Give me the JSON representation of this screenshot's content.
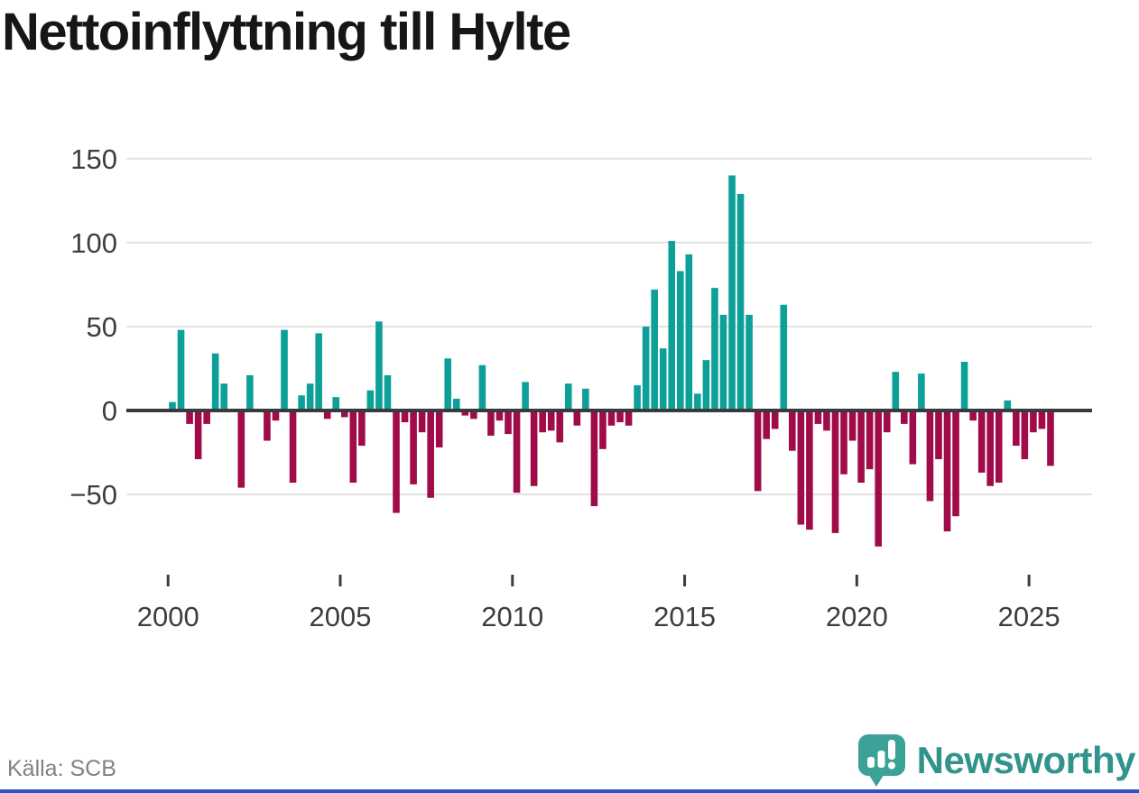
{
  "title": "Nettoinflyttning till Hylte",
  "source": "Källa: SCB",
  "brand": {
    "name": "Newsworthy"
  },
  "colors": {
    "positive_bar": "#0da099",
    "negative_bar": "#a00b49",
    "axis_line": "#3a3a3a",
    "gridline": "#e2e2e2",
    "tick_label": "#3d3d3d",
    "title_text": "#161616",
    "source_text": "#828282",
    "brand_teal": "#3CA197",
    "brand_text": "#31948C",
    "accent_bottom": "#2b52c7"
  },
  "chart_data": {
    "type": "bar",
    "frequency": "quarterly",
    "x_start": "2000 Q1",
    "x_end": "2025 Q3",
    "values": [
      5,
      48,
      -8,
      -29,
      -8,
      34,
      16,
      0,
      -46,
      21,
      0,
      -18,
      -6,
      48,
      -43,
      9,
      16,
      46,
      -5,
      8,
      -4,
      -43,
      -21,
      12,
      53,
      21,
      -61,
      -7,
      -44,
      -13,
      -52,
      -22,
      31,
      7,
      -3,
      -5,
      27,
      -15,
      -6,
      -14,
      -49,
      17,
      -45,
      -13,
      -12,
      -19,
      16,
      -9,
      13,
      -57,
      -23,
      -9,
      -7,
      -9,
      15,
      50,
      72,
      37,
      101,
      83,
      93,
      10,
      30,
      73,
      57,
      140,
      129,
      57,
      -48,
      -17,
      -11,
      63,
      -24,
      -68,
      -71,
      -8,
      -12,
      -73,
      -38,
      -18,
      -43,
      -35,
      -81,
      -13,
      23,
      -8,
      -32,
      22,
      -54,
      -29,
      -72,
      -63,
      29,
      -6,
      -37,
      -45,
      -43,
      6,
      -21,
      -29,
      -13,
      -11,
      -33
    ],
    "y_ticks": [
      {
        "v": 150,
        "label": "150"
      },
      {
        "v": 100,
        "label": "100"
      },
      {
        "v": 50,
        "label": "50"
      },
      {
        "v": 0,
        "label": "0"
      },
      {
        "v": -50,
        "label": "−50"
      }
    ],
    "x_tick_years": [
      {
        "year": 2000,
        "label": "2000"
      },
      {
        "year": 2005,
        "label": "2005"
      },
      {
        "year": 2010,
        "label": "2010"
      },
      {
        "year": 2015,
        "label": "2015"
      },
      {
        "year": 2020,
        "label": "2020"
      },
      {
        "year": 2025,
        "label": "2025"
      }
    ],
    "ylim": [
      -90,
      155
    ],
    "grid": true,
    "legend": "none",
    "title": "Nettoinflyttning till Hylte"
  }
}
